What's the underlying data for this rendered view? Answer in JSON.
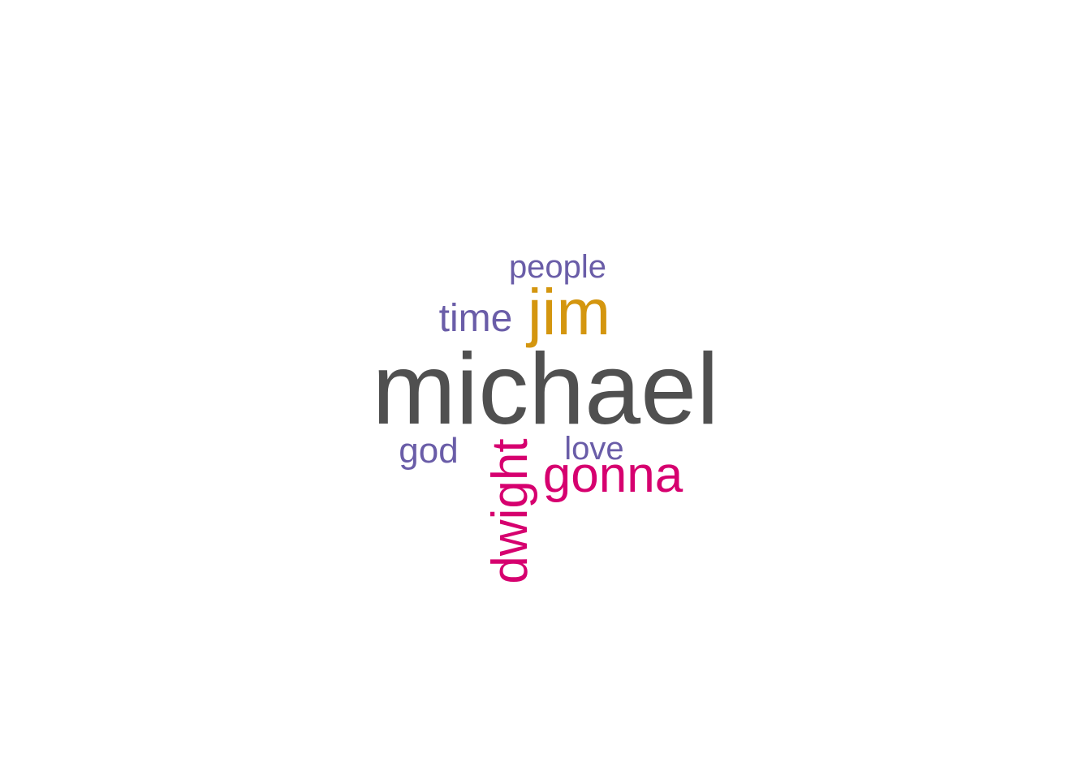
{
  "chart_data": {
    "type": "wordcloud",
    "words": [
      {
        "text": "michael",
        "color": "#505050"
      },
      {
        "text": "jim",
        "color": "#D4960F"
      },
      {
        "text": "dwight",
        "color": "#D6006F"
      },
      {
        "text": "gonna",
        "color": "#D6006F"
      },
      {
        "text": "time",
        "color": "#6A5DA8"
      },
      {
        "text": "people",
        "color": "#6A5DA8"
      },
      {
        "text": "god",
        "color": "#6A5DA8"
      },
      {
        "text": "love",
        "color": "#6A5DA8"
      }
    ]
  }
}
